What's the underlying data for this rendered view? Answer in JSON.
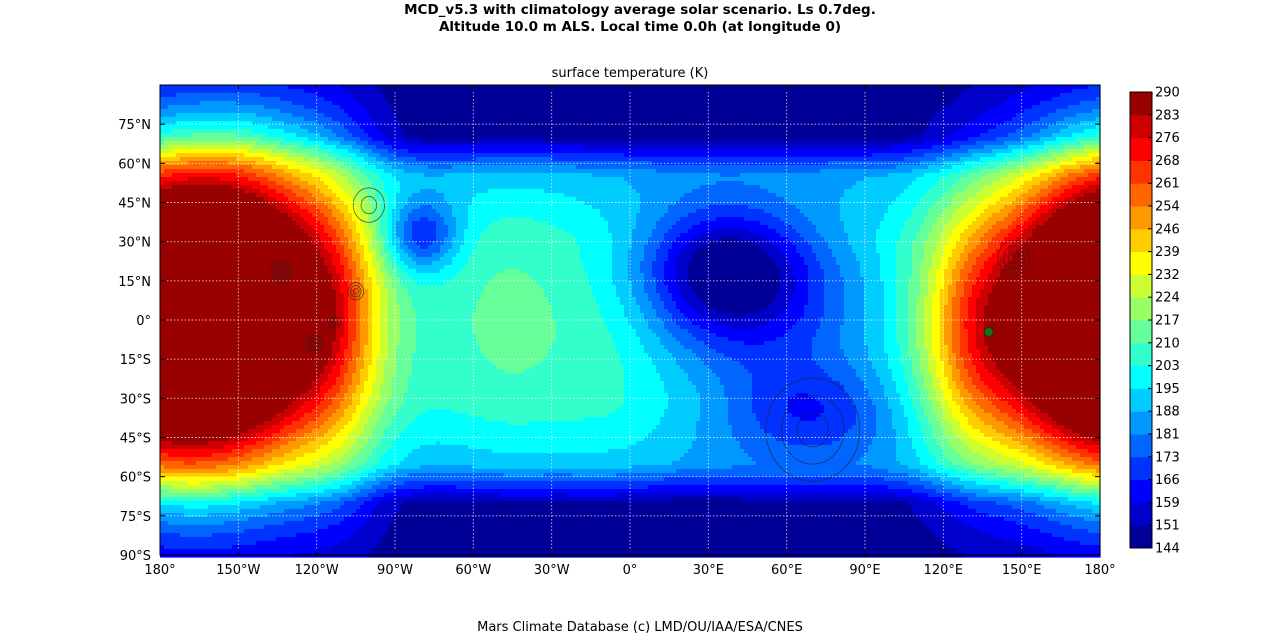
{
  "header": {
    "title_line1": "MCD_v5.3 with climatology average solar scenario. Ls 0.7deg.",
    "title_line2": "Altitude 10.0 m ALS. Local time 0.0h (at longitude 0)"
  },
  "footer": {
    "credit": "Mars Climate Database (c) LMD/OU/IAA/ESA/CNES"
  },
  "chart_data": {
    "type": "heatmap",
    "title": "surface temperature (K)",
    "xlim": [
      -180,
      180
    ],
    "ylim": [
      -90,
      90
    ],
    "x_ticks": [
      {
        "value": -180,
        "label": "180°"
      },
      {
        "value": -150,
        "label": "150°W"
      },
      {
        "value": -120,
        "label": "120°W"
      },
      {
        "value": -90,
        "label": "90°W"
      },
      {
        "value": -60,
        "label": "60°W"
      },
      {
        "value": -30,
        "label": "30°W"
      },
      {
        "value": 0,
        "label": "0°"
      },
      {
        "value": 30,
        "label": "30°E"
      },
      {
        "value": 60,
        "label": "60°E"
      },
      {
        "value": 90,
        "label": "90°E"
      },
      {
        "value": 120,
        "label": "120°E"
      },
      {
        "value": 150,
        "label": "150°E"
      },
      {
        "value": 180,
        "label": "180°"
      }
    ],
    "y_ticks": [
      {
        "value": 75,
        "label": "75°N"
      },
      {
        "value": 60,
        "label": "60°N"
      },
      {
        "value": 45,
        "label": "45°N"
      },
      {
        "value": 30,
        "label": "30°N"
      },
      {
        "value": 15,
        "label": "15°N"
      },
      {
        "value": 0,
        "label": "0°"
      },
      {
        "value": -15,
        "label": "15°S"
      },
      {
        "value": -30,
        "label": "30°S"
      },
      {
        "value": -45,
        "label": "45°S"
      },
      {
        "value": -60,
        "label": "60°S"
      },
      {
        "value": -75,
        "label": "75°S"
      },
      {
        "value": -90,
        "label": "90°S"
      }
    ],
    "grid": true,
    "colorbar": {
      "min": 144,
      "max": 290,
      "tick_labels": [
        "290",
        "283",
        "276",
        "268",
        "261",
        "254",
        "246",
        "239",
        "232",
        "224",
        "217",
        "210",
        "203",
        "195",
        "188",
        "181",
        "173",
        "166",
        "159",
        "151",
        "144"
      ],
      "colormap": "jet",
      "placement": "right"
    },
    "hotspots": [
      {
        "lon": -170,
        "lat": 3,
        "temp": 290,
        "sx": 30,
        "sy": 38
      },
      {
        "lon": -140,
        "lat": 5,
        "temp": 262,
        "sx": 22,
        "sy": 40
      },
      {
        "lon": -112,
        "lat": 0,
        "temp": 236,
        "sx": 14,
        "sy": 38
      },
      {
        "lon": -80,
        "lat": 33,
        "temp": 162,
        "sx": 10,
        "sy": 10
      },
      {
        "lon": -45,
        "lat": 0,
        "temp": 212,
        "sx": 22,
        "sy": 30
      },
      {
        "lon": -5,
        "lat": -10,
        "temp": 205,
        "sx": 15,
        "sy": 25
      },
      {
        "lon": 35,
        "lat": 20,
        "temp": 155,
        "sx": 22,
        "sy": 18
      },
      {
        "lon": 55,
        "lat": 5,
        "temp": 175,
        "sx": 30,
        "sy": 25
      },
      {
        "lon": 70,
        "lat": -38,
        "temp": 170,
        "sx": 25,
        "sy": 15
      },
      {
        "lon": 130,
        "lat": -5,
        "temp": 232,
        "sx": 14,
        "sy": 32
      },
      {
        "lon": 175,
        "lat": 0,
        "temp": 288,
        "sx": 30,
        "sy": 38
      }
    ],
    "marker": {
      "lon": 137.4,
      "lat": -4.6,
      "color": "#1e6b1e"
    },
    "contour_features": [
      {
        "lon": -133.5,
        "lat": 18.5,
        "rings": 4,
        "r": 4
      },
      {
        "lon": -105,
        "lat": 11,
        "rings": 3,
        "r": 3
      },
      {
        "lon": -113,
        "lat": -1,
        "rings": 2,
        "r": 2
      },
      {
        "lon": -121,
        "lat": -9,
        "rings": 3,
        "r": 3
      },
      {
        "lon": 147,
        "lat": 24,
        "rings": 3,
        "r": 6
      },
      {
        "lon": 70,
        "lat": -42,
        "rings": 3,
        "r": 18
      },
      {
        "lon": -100,
        "lat": 44,
        "rings": 2,
        "r": 6
      }
    ]
  }
}
